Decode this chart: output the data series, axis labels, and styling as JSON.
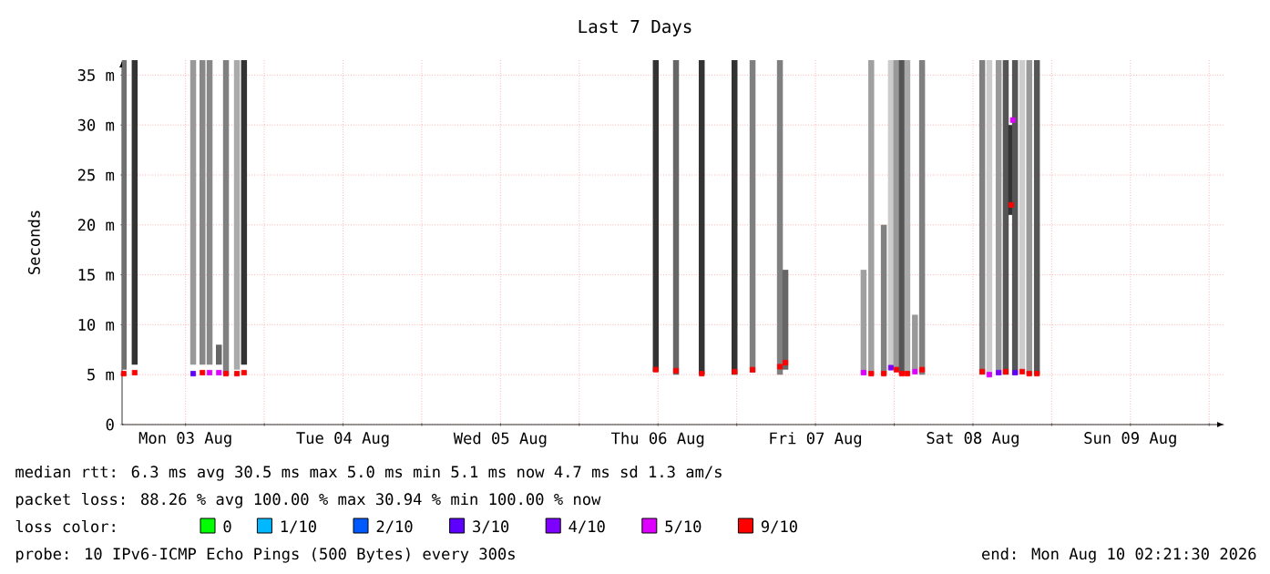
{
  "chart_data": {
    "type": "bar",
    "title": "Last 7 Days",
    "ylabel": "Seconds",
    "xlim": [
      "2026-08-03T02:20",
      "2026-08-10T02:20"
    ],
    "xticks": [
      {
        "value": "2026-08-03T12:00",
        "label": "Mon 03 Aug"
      },
      {
        "value": "2026-08-04T00:00",
        "label": null
      },
      {
        "value": "2026-08-04T12:00",
        "label": "Tue 04 Aug"
      },
      {
        "value": "2026-08-05T00:00",
        "label": null
      },
      {
        "value": "2026-08-05T12:00",
        "label": "Wed 05 Aug"
      },
      {
        "value": "2026-08-06T00:00",
        "label": null
      },
      {
        "value": "2026-08-06T12:00",
        "label": "Thu 06 Aug"
      },
      {
        "value": "2026-08-07T00:00",
        "label": null
      },
      {
        "value": "2026-08-07T12:00",
        "label": "Fri 07 Aug"
      },
      {
        "value": "2026-08-08T00:00",
        "label": null
      },
      {
        "value": "2026-08-08T12:00",
        "label": "Sat 08 Aug"
      },
      {
        "value": "2026-08-09T00:00",
        "label": null
      },
      {
        "value": "2026-08-09T12:00",
        "label": "Sun 09 Aug"
      },
      {
        "value": "2026-08-10T00:00",
        "label": null
      }
    ],
    "ylim": [
      0,
      36.5
    ],
    "yticks": [
      0,
      {
        "value": 5,
        "label": "5 m"
      },
      {
        "value": 10,
        "label": "10 m"
      },
      {
        "value": 15,
        "label": "15 m"
      },
      {
        "value": 20,
        "label": "20 m"
      },
      {
        "value": 25,
        "label": "25 m"
      },
      {
        "value": 30,
        "label": "30 m"
      },
      {
        "value": 35,
        "label": "35 m"
      }
    ],
    "grid": true,
    "legend": "bottom",
    "legend_title": "loss color:",
    "marker": "square",
    "series": [
      {
        "x": [
          "2026-08-03T02:35",
          "2026-08-03T04:15",
          "2026-08-03T13:10",
          "2026-08-03T14:35",
          "2026-08-03T15:40",
          "2026-08-03T17:05",
          "2026-08-03T18:10",
          "2026-08-03T19:50",
          "2026-08-03T20:55",
          "2026-08-06T11:40",
          "2026-08-06T14:45",
          "2026-08-06T18:40",
          "2026-08-06T23:40",
          "2026-08-07T02:25",
          "2026-08-07T06:35",
          "2026-08-07T07:25",
          "2026-08-07T19:20",
          "2026-08-07T20:30",
          "2026-08-07T22:25",
          "2026-08-07T23:30",
          "2026-08-08T00:20",
          "2026-08-08T01:10",
          "2026-08-08T02:00",
          "2026-08-08T03:10",
          "2026-08-08T04:15",
          "2026-08-08T13:25",
          "2026-08-08T14:30",
          "2026-08-08T15:55",
          "2026-08-08T17:00",
          "2026-08-08T17:50",
          "2026-08-08T18:25",
          "2026-08-08T19:30",
          "2026-08-08T20:35",
          "2026-08-08T21:45"
        ],
        "base": [
          5.5,
          6,
          6,
          6,
          6,
          6,
          5,
          5.5,
          6,
          5.3,
          5,
          5,
          5,
          5.2,
          5,
          5.5,
          5,
          5,
          5,
          5.5,
          5.5,
          5,
          5,
          5.5,
          5,
          5,
          5,
          5,
          5,
          21,
          5,
          5.5,
          5,
          5
        ],
        "values": [
          31,
          30.5,
          30.5,
          30.5,
          30.5,
          2,
          31.5,
          31,
          30.5,
          31.2,
          31.5,
          31.5,
          31.5,
          31.3,
          31.5,
          10,
          10.5,
          31.5,
          15,
          31,
          31,
          31.5,
          31.5,
          5.5,
          31.5,
          31.5,
          31.5,
          31.5,
          31.5,
          9,
          31.5,
          31,
          31.5,
          31.5
        ],
        "colors": [
          "#707070",
          "#333333",
          "#999999",
          "#888888",
          "#888888",
          "#666666",
          "#808080",
          "#aaaaaa",
          "#333333",
          "#333333",
          "#666666",
          "#333333",
          "#333333",
          "#808080",
          "#808080",
          "#666666",
          "#a0a0a0",
          "#a0a0a0",
          "#808080",
          "#cccccc",
          "#999999",
          "#555555",
          "#aaaaaa",
          "#999999",
          "#808080",
          "#808080",
          "#cccccc",
          "#999999",
          "#555555",
          "#333333",
          "#555555",
          "#cccccc",
          "#999999",
          "#555555"
        ]
      },
      {
        "type": "scatter",
        "name": "0",
        "color": "#00ff00"
      },
      {
        "type": "scatter",
        "name": "1/10",
        "color": "#00b8ff"
      },
      {
        "type": "scatter",
        "name": "2/10",
        "color": "#0059ff"
      },
      {
        "type": "scatter",
        "name": "3/10",
        "color": "#5e00ff",
        "x": [
          "2026-08-03T13:10",
          "2026-08-08T18:25"
        ],
        "values": [
          5.1,
          5.2
        ]
      },
      {
        "type": "scatter",
        "name": "4/10",
        "color": "#7e00ff",
        "x": [
          "2026-08-07T23:30",
          "2026-08-08T15:55"
        ],
        "values": [
          5.7,
          5.2
        ]
      },
      {
        "type": "scatter",
        "name": "5/10",
        "color": "#dd00ff",
        "x": [
          "2026-08-03T15:40",
          "2026-08-03T17:05",
          "2026-08-07T19:20",
          "2026-08-08T03:10",
          "2026-08-08T14:30",
          "2026-08-08T18:05"
        ],
        "values": [
          5.2,
          5.2,
          5.2,
          5.3,
          5.0,
          30.5
        ]
      },
      {
        "type": "scatter",
        "name": "9/10",
        "color": "#ff0000",
        "x": [
          "2026-08-03T02:35",
          "2026-08-03T04:15",
          "2026-08-03T14:35",
          "2026-08-03T18:10",
          "2026-08-03T19:50",
          "2026-08-03T20:55",
          "2026-08-06T11:40",
          "2026-08-06T14:45",
          "2026-08-06T18:40",
          "2026-08-06T23:40",
          "2026-08-07T02:25",
          "2026-08-07T06:35",
          "2026-08-07T07:25",
          "2026-08-07T20:30",
          "2026-08-07T22:25",
          "2026-08-08T00:20",
          "2026-08-08T01:10",
          "2026-08-08T02:00",
          "2026-08-08T04:15",
          "2026-08-08T13:25",
          "2026-08-08T17:00",
          "2026-08-08T17:50",
          "2026-08-08T19:30",
          "2026-08-08T20:35",
          "2026-08-08T21:45"
        ],
        "values": [
          5.1,
          5.2,
          5.2,
          5.1,
          5.1,
          5.2,
          5.5,
          5.4,
          5.1,
          5.3,
          5.5,
          5.8,
          6.2,
          5.1,
          5.1,
          5.5,
          5.1,
          5.1,
          5.5,
          5.3,
          5.3,
          22,
          5.3,
          5.1,
          5.1
        ]
      }
    ],
    "annotations": [
      "median rtt: 6.3 ms avg 30.5 ms max 5.0 ms min 5.1 ms now 4.7 ms sd 1.3 am/s",
      "packet loss: 88.26 % avg 100.00 % max 30.94 % min 100.00 % now",
      "probe: 10 IPv6-ICMP Echo Pings (500 Bytes) every 300s",
      "end: Mon Aug 10 02:21:30 2026"
    ]
  }
}
